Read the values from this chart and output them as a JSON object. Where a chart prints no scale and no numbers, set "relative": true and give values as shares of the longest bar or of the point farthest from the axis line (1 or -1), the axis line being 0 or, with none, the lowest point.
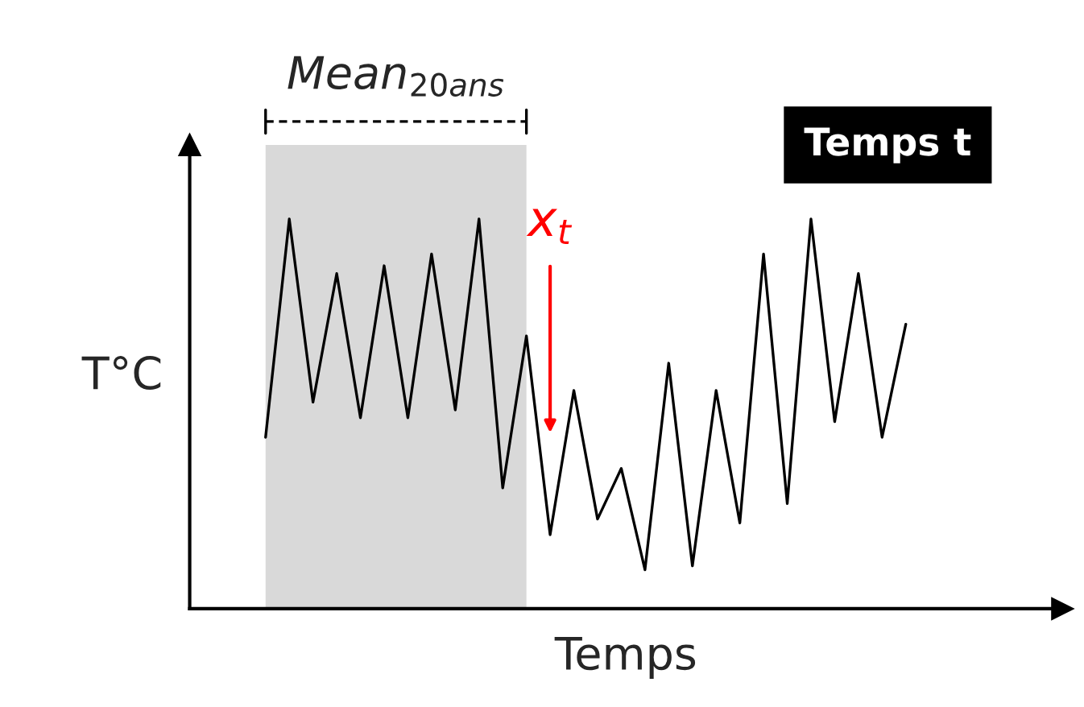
{
  "chart_data": {
    "type": "line",
    "relative": true,
    "xlabel": "Temps",
    "ylabel": "T°C",
    "categories": [
      null,
      null,
      null,
      null,
      null,
      null,
      null,
      null,
      null,
      null,
      null,
      null,
      null,
      null,
      null,
      null,
      null,
      null,
      null,
      null,
      null,
      null,
      null,
      null,
      null,
      null,
      null,
      null
    ],
    "series": [
      {
        "color": "#000000",
        "values": [
          0.44,
          1.0,
          0.53,
          0.86,
          0.49,
          0.88,
          0.49,
          0.91,
          0.51,
          1.0,
          0.31,
          0.7,
          0.19,
          0.56,
          0.23,
          0.36,
          0.1,
          0.63,
          0.11,
          0.56,
          0.22,
          0.91,
          0.27,
          1.0,
          0.48,
          0.86,
          0.44,
          0.73
        ]
      }
    ],
    "annotations": [
      "Mean$_{20ans}$",
      "x$_{t}$",
      "Temps t"
    ]
  }
}
